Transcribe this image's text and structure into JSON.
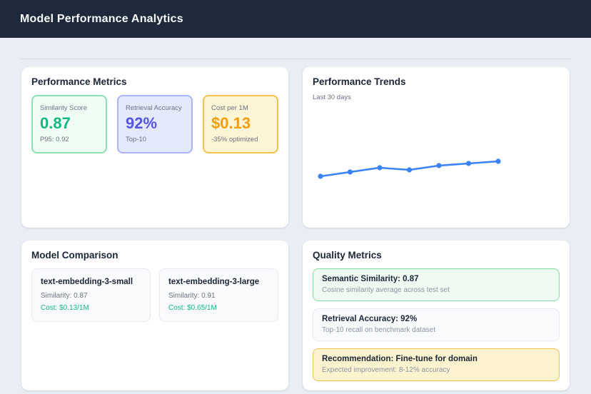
{
  "header": {
    "title": "Model Performance Analytics"
  },
  "cards": {
    "performance_metrics": {
      "title": "Performance Metrics",
      "metrics": [
        {
          "label": "Similarity Score",
          "value": "0.87",
          "sub": "P95: 0.92",
          "theme": "green"
        },
        {
          "label": "Retrieval Accuracy",
          "value": "92%",
          "sub": "Top-10",
          "theme": "indigo"
        },
        {
          "label": "Cost per 1M",
          "value": "$0.13",
          "sub": "-35% optimized",
          "theme": "amber"
        }
      ]
    },
    "performance_trends": {
      "title": "Performance Trends",
      "subtitle": "Last 30 days"
    },
    "model_comparison": {
      "title": "Model Comparison",
      "models": [
        {
          "name": "text-embedding-3-small",
          "similarity": "Similarity: 0.87",
          "cost": "Cost: $0.13/1M"
        },
        {
          "name": "text-embedding-3-large",
          "similarity": "Similarity: 0.91",
          "cost": "Cost: $0.65/1M"
        }
      ]
    },
    "quality_metrics": {
      "title": "Quality Metrics",
      "rows": [
        {
          "title": "Semantic Similarity: 0.87",
          "description": "Cosine similarity average across test set",
          "theme": "green"
        },
        {
          "title": "Retrieval Accuracy: 92%",
          "description": "Top-10 recall on benchmark dataset",
          "theme": "neutral"
        },
        {
          "title": "Recommendation: Fine-tune for domain",
          "description": "Expected improvement: 8-12% accuracy",
          "theme": "amber"
        }
      ]
    }
  },
  "chart_data": {
    "type": "line",
    "title": "Performance Trends",
    "subtitle": "Last 30 days",
    "x": [
      1,
      2,
      3,
      4,
      5,
      6,
      7
    ],
    "series": [
      {
        "name": "Similarity score",
        "values": [
          0.78,
          0.8,
          0.82,
          0.81,
          0.83,
          0.84,
          0.85
        ]
      }
    ],
    "ylim": [
      0.65,
      1.05
    ],
    "grid": false,
    "legend": false,
    "line_color": "#3b82f6"
  },
  "colors": {
    "header_bg": "#1e293b",
    "page_bg": "#e9eef5",
    "accent_green": "#10b981",
    "accent_indigo": "#5455e3",
    "accent_amber": "#f59e0b",
    "chart_line": "#3b82f6"
  }
}
